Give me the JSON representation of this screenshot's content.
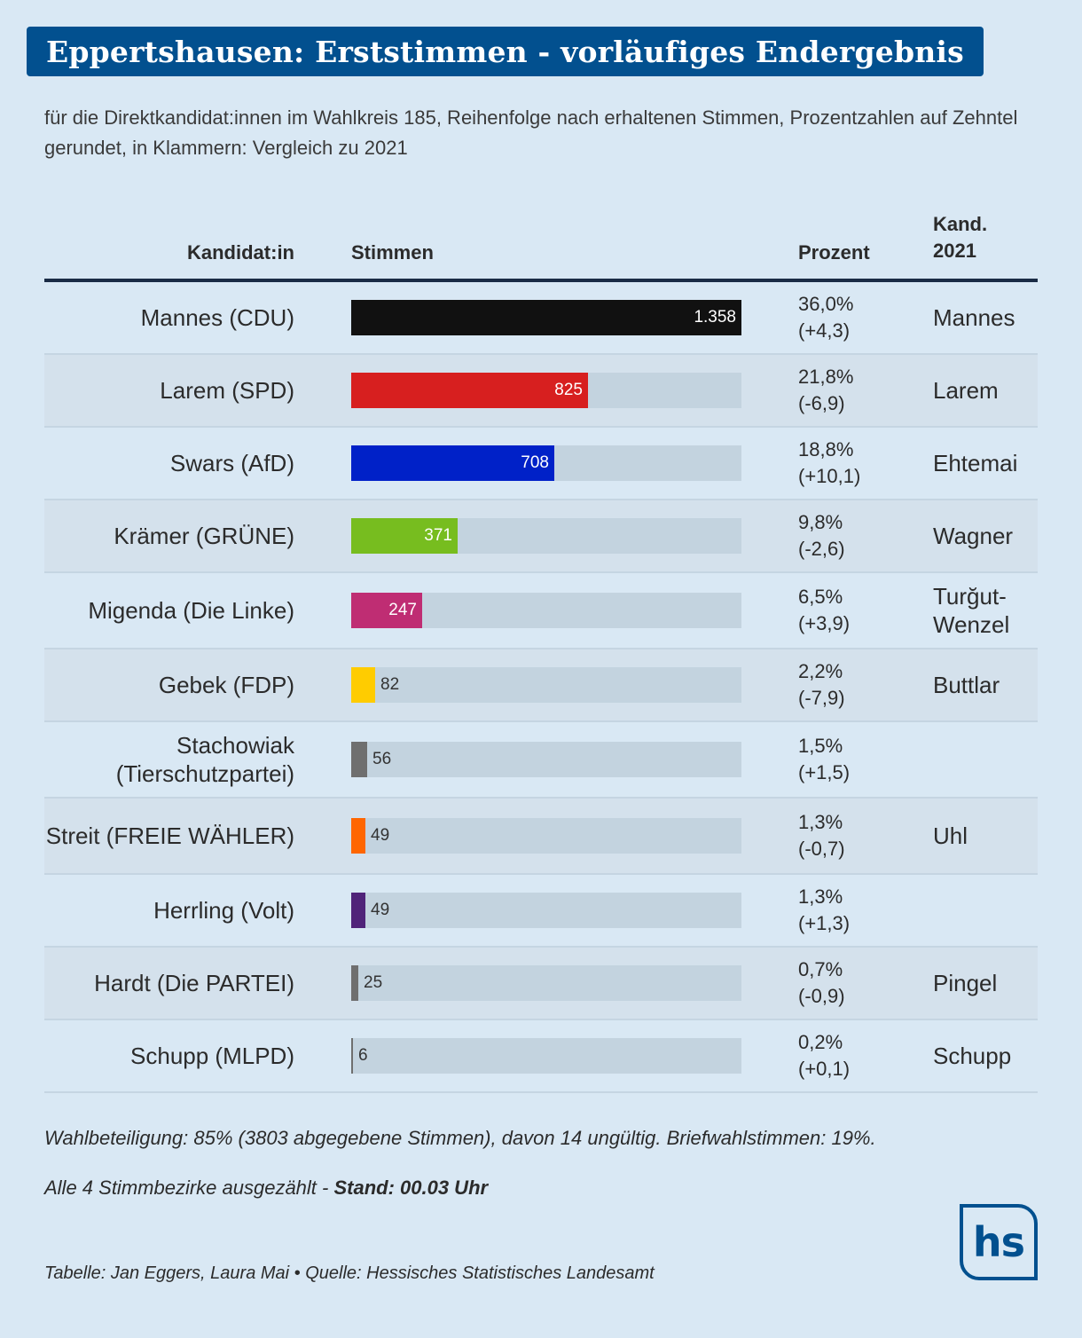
{
  "title": "Eppertshausen: Erststimmen - vorläufiges Endergebnis",
  "subtitle": "für die Direktkandidat:innen im Wahlkreis 185, Reihenfolge nach erhaltenen Stimmen, Prozentzahlen auf Zehntel gerundet, in Klammern: Vergleich zu 2021",
  "headers": {
    "candidate": "Kandidat:in",
    "votes": "Stimmen",
    "percent": "Prozent",
    "kand2021_line1": "Kand.",
    "kand2021_line2": "2021"
  },
  "chart_data": {
    "type": "bar",
    "orientation": "horizontal",
    "title": "Eppertshausen: Erststimmen - vorläufiges Endergebnis",
    "xlim": [
      0,
      1358
    ],
    "rows": [
      {
        "candidate": "Mannes (CDU)",
        "votes": 1358,
        "votes_label": "1.358",
        "percent": "36,0%",
        "change": "(+4,3)",
        "kand2021": "Mannes",
        "color": "#111111",
        "height": 82
      },
      {
        "candidate": "Larem (SPD)",
        "votes": 825,
        "votes_label": "825",
        "percent": "21,8%",
        "change": "(-6,9)",
        "kand2021": "Larem",
        "color": "#d71f1f",
        "height": 82
      },
      {
        "candidate": "Swars (AfD)",
        "votes": 708,
        "votes_label": "708",
        "percent": "18,8%",
        "change": "(+10,1)",
        "kand2021": "Ehtemai",
        "color": "#0021c8",
        "height": 82
      },
      {
        "candidate": "Krämer (GRÜNE)",
        "votes": 371,
        "votes_label": "371",
        "percent": "9,8%",
        "change": "(-2,6)",
        "kand2021": "Wagner",
        "color": "#77bd1f",
        "height": 82
      },
      {
        "candidate": "Migenda (Die Linke)",
        "votes": 247,
        "votes_label": "247",
        "percent": "6,5%",
        "change": "(+3,9)",
        "kand2021": "Turğut-Wenzel",
        "color": "#bf2d73",
        "height": 86
      },
      {
        "candidate": "Gebek (FDP)",
        "votes": 82,
        "votes_label": "82",
        "percent": "2,2%",
        "change": "(-7,9)",
        "kand2021": "Buttlar",
        "color": "#ffcc00",
        "height": 82
      },
      {
        "candidate": "Stachowiak (Tierschutzpartei)",
        "votes": 56,
        "votes_label": "56",
        "percent": "1,5%",
        "change": "(+1,5)",
        "kand2021": "",
        "color": "#6f6f6f",
        "height": 86
      },
      {
        "candidate": "Streit (FREIE WÄHLER)",
        "votes": 49,
        "votes_label": "49",
        "percent": "1,3%",
        "change": "(-0,7)",
        "kand2021": "Uhl",
        "color": "#ff6600",
        "height": 86
      },
      {
        "candidate": "Herrling (Volt)",
        "votes": 49,
        "votes_label": "49",
        "percent": "1,3%",
        "change": "(+1,3)",
        "kand2021": "",
        "color": "#502379",
        "height": 82
      },
      {
        "candidate": "Hardt (Die PARTEI)",
        "votes": 25,
        "votes_label": "25",
        "percent": "0,7%",
        "change": "(-0,9)",
        "kand2021": "Pingel",
        "color": "#6f6f6f",
        "height": 82
      },
      {
        "candidate": "Schupp (MLPD)",
        "votes": 6,
        "votes_label": "6",
        "percent": "0,2%",
        "change": "(+0,1)",
        "kand2021": "Schupp",
        "color": "#6f6f6f",
        "height": 82
      }
    ]
  },
  "notes": {
    "turnout": "Wahlbeteiligung: 85% (3803 abgegebene Stimmen), davon 14 ungültig. Briefwahlstimmen: 19%.",
    "count_prefix": "Alle 4 Stimmbezirke ausgezählt - ",
    "count_stand": "Stand: 00.03 Uhr"
  },
  "credits": "Tabelle: Jan Eggers, Laura Mai • Quelle: Hessisches Statistisches Landesamt",
  "logo_text": "hs",
  "colors": {
    "background": "#d9e8f4",
    "title_bg": "#02508f",
    "track": "#c3d3df"
  }
}
